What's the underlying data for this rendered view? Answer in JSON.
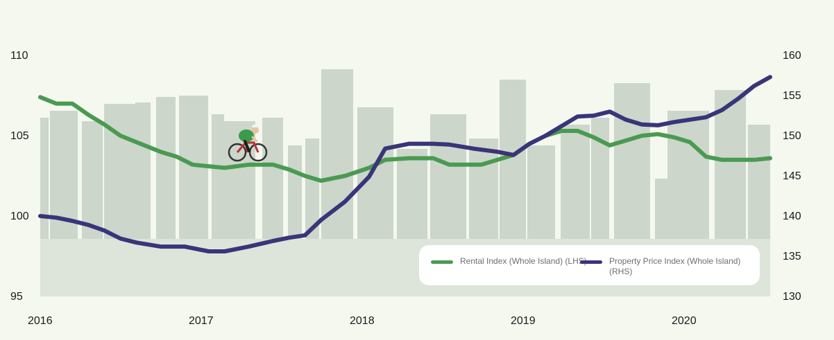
{
  "chart_data": {
    "type": "line",
    "x_ticks": [
      "2016",
      "2017",
      "2018",
      "2019",
      "2020"
    ],
    "x_range": [
      2016.0,
      2020.55
    ],
    "y_left": {
      "ticks": [
        "95",
        "100",
        "105",
        "110"
      ],
      "range": [
        95,
        110
      ]
    },
    "y_right": {
      "ticks": [
        "130",
        "135",
        "140",
        "145",
        "150",
        "155",
        "160"
      ],
      "range": [
        130,
        160
      ]
    },
    "grid": false,
    "legend_position": "bottom-right",
    "colors": {
      "rental": "#4a9a52",
      "price": "#3a3479",
      "skyline": "#dde5da",
      "building": "#ccd6cb",
      "background": "#f4f8ef"
    },
    "decoration": "cyclist-icon",
    "series": [
      {
        "key": "rental",
        "name": "Rental Index (Whole Island) (LHS)",
        "axis": "left",
        "points": [
          [
            2016.0,
            107.4
          ],
          [
            2016.1,
            107.0
          ],
          [
            2016.2,
            107.0
          ],
          [
            2016.3,
            106.3
          ],
          [
            2016.4,
            105.7
          ],
          [
            2016.5,
            105.0
          ],
          [
            2016.6,
            104.6
          ],
          [
            2016.75,
            104.0
          ],
          [
            2016.85,
            103.7
          ],
          [
            2016.95,
            103.2
          ],
          [
            2017.05,
            103.1
          ],
          [
            2017.15,
            103.0
          ],
          [
            2017.3,
            103.2
          ],
          [
            2017.45,
            103.2
          ],
          [
            2017.55,
            102.9
          ],
          [
            2017.65,
            102.5
          ],
          [
            2017.75,
            102.2
          ],
          [
            2017.9,
            102.5
          ],
          [
            2018.05,
            103.0
          ],
          [
            2018.15,
            103.5
          ],
          [
            2018.3,
            103.6
          ],
          [
            2018.45,
            103.6
          ],
          [
            2018.55,
            103.2
          ],
          [
            2018.7,
            103.2
          ],
          [
            2018.75,
            103.2
          ],
          [
            2018.95,
            103.8
          ],
          [
            2019.05,
            104.5
          ],
          [
            2019.15,
            105.0
          ],
          [
            2019.25,
            105.3
          ],
          [
            2019.35,
            105.3
          ],
          [
            2019.45,
            104.9
          ],
          [
            2019.55,
            104.4
          ],
          [
            2019.65,
            104.7
          ],
          [
            2019.75,
            105.0
          ],
          [
            2019.85,
            105.1
          ],
          [
            2019.95,
            104.9
          ],
          [
            2020.05,
            104.6
          ],
          [
            2020.15,
            103.7
          ],
          [
            2020.25,
            103.5
          ],
          [
            2020.35,
            103.5
          ],
          [
            2020.45,
            103.5
          ],
          [
            2020.55,
            103.6
          ]
        ]
      },
      {
        "key": "price",
        "name": "Property Price Index (Whole Island) (RHS)",
        "axis": "right",
        "points": [
          [
            2016.0,
            140.0
          ],
          [
            2016.1,
            139.8
          ],
          [
            2016.2,
            139.4
          ],
          [
            2016.3,
            138.9
          ],
          [
            2016.4,
            138.2
          ],
          [
            2016.5,
            137.2
          ],
          [
            2016.6,
            136.7
          ],
          [
            2016.75,
            136.2
          ],
          [
            2016.9,
            136.2
          ],
          [
            2017.05,
            135.6
          ],
          [
            2017.15,
            135.6
          ],
          [
            2017.3,
            136.2
          ],
          [
            2017.45,
            136.9
          ],
          [
            2017.55,
            137.3
          ],
          [
            2017.65,
            137.6
          ],
          [
            2017.75,
            139.5
          ],
          [
            2017.9,
            141.8
          ],
          [
            2018.05,
            144.9
          ],
          [
            2018.15,
            148.4
          ],
          [
            2018.3,
            149.0
          ],
          [
            2018.45,
            149.0
          ],
          [
            2018.55,
            148.9
          ],
          [
            2018.7,
            148.4
          ],
          [
            2018.85,
            148.0
          ],
          [
            2018.95,
            147.6
          ],
          [
            2019.05,
            149.0
          ],
          [
            2019.15,
            150.0
          ],
          [
            2019.25,
            151.2
          ],
          [
            2019.35,
            152.4
          ],
          [
            2019.45,
            152.5
          ],
          [
            2019.55,
            153.0
          ],
          [
            2019.65,
            152.0
          ],
          [
            2019.75,
            151.4
          ],
          [
            2019.85,
            151.3
          ],
          [
            2019.95,
            151.7
          ],
          [
            2020.05,
            152.0
          ],
          [
            2020.15,
            152.3
          ],
          [
            2020.25,
            153.2
          ],
          [
            2020.35,
            154.6
          ],
          [
            2020.45,
            156.2
          ],
          [
            2020.55,
            157.3
          ]
        ]
      }
    ]
  }
}
